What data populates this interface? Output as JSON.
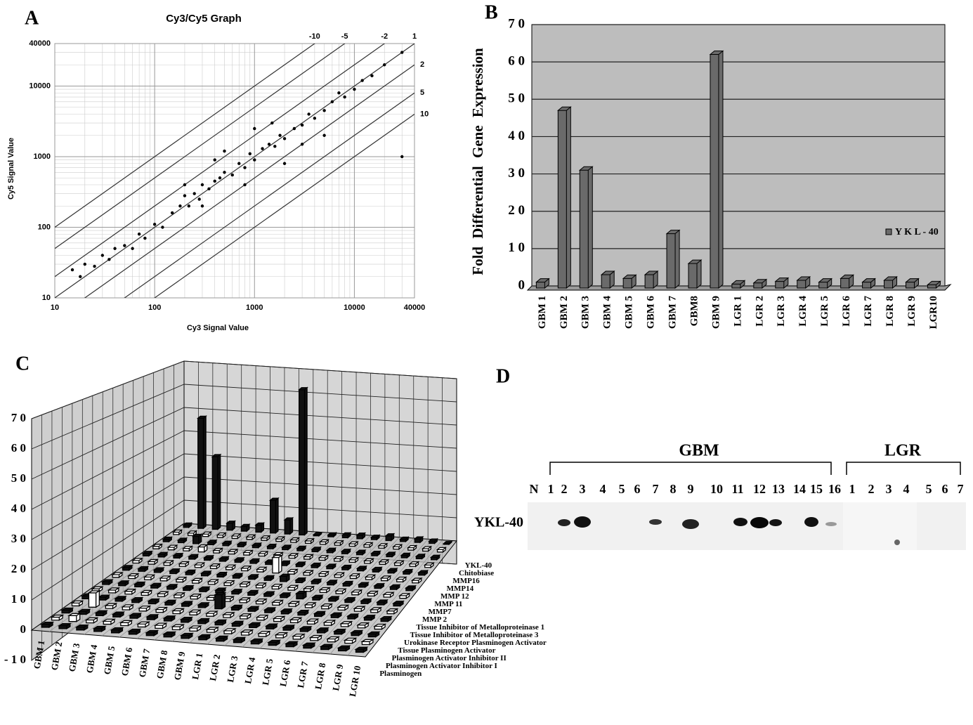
{
  "panels": {
    "a": "A",
    "b": "B",
    "c": "C",
    "d": "D"
  },
  "chart_data": [
    {
      "type": "scatter",
      "title": "Cy3/Cy5 Graph",
      "x_label": "Cy3 Signal Value",
      "y_label": "Cy5 Signal Value",
      "log_scale": true,
      "grid": true,
      "color": "#000000",
      "xlim": [
        10,
        40000
      ],
      "ylim": [
        10,
        40000
      ],
      "xticks": [
        10,
        100,
        1000,
        10000,
        40000
      ],
      "yticks": [
        10,
        100,
        1000,
        10000,
        40000
      ],
      "fold_lines": [
        {
          "value": 10,
          "label": "-10"
        },
        {
          "value": 5,
          "label": "-5"
        },
        {
          "value": 2,
          "label": "-2"
        },
        {
          "value": 1,
          "label": "1"
        },
        {
          "value": 0.5,
          "label": "2"
        },
        {
          "value": 0.2,
          "label": "5"
        },
        {
          "value": 0.1,
          "label": "10"
        }
      ],
      "x": [
        15,
        18,
        20,
        25,
        30,
        35,
        40,
        50,
        60,
        70,
        80,
        100,
        120,
        150,
        180,
        200,
        220,
        250,
        280,
        300,
        350,
        400,
        450,
        500,
        600,
        700,
        800,
        900,
        1000,
        1200,
        1400,
        1600,
        1800,
        2000,
        2500,
        3000,
        3500,
        4000,
        5000,
        6000,
        7000,
        8000,
        10000,
        12000,
        15000,
        20000,
        30000,
        200,
        300,
        500,
        1000,
        2000,
        5000,
        400,
        800,
        1500,
        3000,
        30000
      ],
      "y": [
        25,
        20,
        30,
        28,
        40,
        35,
        50,
        55,
        50,
        80,
        70,
        110,
        100,
        160,
        200,
        280,
        200,
        300,
        250,
        400,
        350,
        450,
        500,
        600,
        550,
        800,
        700,
        1100,
        900,
        1300,
        1500,
        1400,
        2000,
        1800,
        2500,
        2800,
        4000,
        3500,
        4500,
        6000,
        8000,
        7000,
        9000,
        12000,
        14000,
        20000,
        30000,
        400,
        200,
        1200,
        2500,
        800,
        2000,
        900,
        400,
        3000,
        1500,
        1000
      ]
    },
    {
      "type": "bar",
      "y_label": "Fold Differential Gene Expression",
      "legend": "right",
      "grid": true,
      "categories": [
        "GBM 1",
        "GBM 2",
        "GBM 3",
        "GBM 4",
        "GBM 5",
        "GBM 6",
        "GBM 7",
        "GBM8",
        "GBM 9",
        "LGR 1",
        "LGR 2",
        "LGR 3",
        "LGR 4",
        "LGR 5",
        "LGR 6",
        "LGR 7",
        "LGR 8",
        "LGR 9",
        "LGR10"
      ],
      "series": [
        {
          "name": "Y K L - 40",
          "color": "#6a6a6a",
          "values": [
            1,
            47,
            31,
            3,
            2,
            3,
            14,
            6,
            62,
            0.5,
            0.8,
            1.2,
            1.5,
            1,
            2,
            1,
            1.5,
            1,
            0.3
          ]
        }
      ],
      "ylim": [
        0,
        70
      ],
      "yticks": [
        0,
        {
          "value": 10,
          "label": "1 0"
        },
        {
          "value": 20,
          "label": "2 0"
        },
        {
          "value": 30,
          "label": "3 0"
        },
        {
          "value": 40,
          "label": "4 0"
        },
        {
          "value": 50,
          "label": "5 0"
        },
        {
          "value": 60,
          "label": "6 0"
        },
        {
          "value": 70,
          "label": "7 0"
        }
      ]
    },
    {
      "type": "bar3d",
      "grid": true,
      "categories": [
        "GBM 1",
        "GBM 2",
        "GBM 3",
        "GBM 4",
        "GBM 5",
        "GBM 6",
        "GBM 7",
        "GBM 8",
        "GBM 9",
        "LGR 1",
        "LGR 2",
        "LGR 3",
        "LGR 4",
        "LGR 5",
        "LGR 6",
        "LGR 7",
        "LGR 8",
        "LGR 9",
        "LGR 10"
      ],
      "series": [
        {
          "name": "Plasminogen",
          "color": "#111111",
          "values": [
            1,
            1,
            1,
            1,
            1,
            1,
            1,
            1,
            1,
            1,
            1,
            1,
            1,
            1,
            1,
            1,
            1,
            1,
            1
          ]
        },
        {
          "name": "Plasminogen Activator Inhibitor I",
          "color": "#ffffff",
          "values": [
            1,
            2,
            1,
            1,
            1,
            1,
            1,
            1,
            1,
            1,
            1,
            1,
            1,
            1,
            1,
            1,
            1,
            1,
            1
          ]
        },
        {
          "name": "Plasminogen Activator Inhibitor II",
          "color": "#111111",
          "values": [
            1,
            1,
            1,
            1,
            1,
            1,
            1,
            1,
            1,
            1,
            1,
            1,
            1,
            1,
            1,
            1,
            1,
            1,
            1
          ]
        },
        {
          "name": "Tissue Plasminogen Activator",
          "color": "#ffffff",
          "values": [
            1,
            5,
            1,
            1,
            1,
            1,
            1,
            1,
            1,
            1,
            1,
            1,
            1,
            1,
            1,
            1,
            1,
            1,
            1
          ]
        },
        {
          "name": "Urokinase Receptor Plasminogen Activator",
          "color": "#111111",
          "values": [
            1,
            1,
            1,
            1,
            1,
            1,
            1,
            1,
            5,
            1,
            1,
            1,
            1,
            1,
            1,
            1,
            1,
            1,
            1
          ]
        },
        {
          "name": "Tissue Inhibitor of Metalloproteinase 3",
          "color": "#ffffff",
          "values": [
            1,
            1,
            1,
            1,
            1,
            1,
            1,
            1,
            1,
            1,
            1,
            1,
            1,
            1,
            1,
            1,
            1,
            1,
            1
          ]
        },
        {
          "name": "Tissue Inhibitor of Metalloproteinase 1",
          "color": "#111111",
          "values": [
            1,
            1,
            1,
            1,
            1,
            1,
            1,
            1,
            1,
            1,
            1,
            1,
            2,
            1,
            1,
            1,
            1,
            1,
            1
          ]
        },
        {
          "name": "MMP 2",
          "color": "#ffffff",
          "values": [
            1,
            1,
            1,
            1,
            1,
            1,
            1,
            1,
            1,
            1,
            1,
            1,
            1,
            1,
            1,
            1,
            1,
            1,
            1
          ]
        },
        {
          "name": "MMP7",
          "color": "#111111",
          "values": [
            1,
            1,
            1,
            1,
            1,
            1,
            1,
            1,
            1,
            1,
            2,
            1,
            1,
            1,
            1,
            1,
            1,
            1,
            1
          ]
        },
        {
          "name": "MMP 11",
          "color": "#ffffff",
          "values": [
            1,
            1,
            1,
            1,
            1,
            1,
            1,
            1,
            1,
            6,
            1,
            1,
            1,
            1,
            1,
            1,
            1,
            1,
            1
          ]
        },
        {
          "name": "MMP 12",
          "color": "#111111",
          "values": [
            1,
            1,
            1,
            1,
            1,
            1,
            1,
            1,
            1,
            1,
            1,
            1,
            1,
            1,
            1,
            1,
            1,
            1,
            1
          ]
        },
        {
          "name": "MMP14",
          "color": "#ffffff",
          "values": [
            1,
            1,
            1,
            2,
            1,
            1,
            1,
            1,
            1,
            1,
            1,
            1,
            1,
            1,
            1,
            1,
            1,
            1,
            1
          ]
        },
        {
          "name": "MMP16",
          "color": "#111111",
          "values": [
            1,
            1,
            3,
            1,
            1,
            1,
            1,
            1,
            1,
            1,
            1,
            1,
            1,
            1,
            1,
            1,
            1,
            1,
            1
          ]
        },
        {
          "name": "Chitobiase",
          "color": "#ffffff",
          "values": [
            1,
            1,
            1,
            1,
            1,
            1,
            1,
            1,
            1,
            1,
            1,
            1,
            1,
            1,
            1,
            1,
            1,
            1,
            1
          ]
        },
        {
          "name": "YKL-40",
          "color": "#111111",
          "values": [
            1,
            47,
            31,
            3,
            2,
            3,
            14,
            6,
            62,
            0.5,
            0.8,
            1.2,
            1.5,
            1,
            2,
            1,
            1.5,
            1,
            0.3
          ]
        }
      ],
      "ylim": [
        -10,
        70
      ],
      "yticks": [
        {
          "value": -10,
          "label": "- 1 0"
        },
        0,
        {
          "value": 10,
          "label": "1 0"
        },
        {
          "value": 20,
          "label": "2 0"
        },
        {
          "value": 30,
          "label": "3 0"
        },
        {
          "value": 40,
          "label": "4 0"
        },
        {
          "value": 50,
          "label": "5 0"
        },
        {
          "value": 60,
          "label": "6 0"
        },
        {
          "value": 70,
          "label": "7 0"
        }
      ]
    }
  ],
  "blot": {
    "groups": [
      "GBM",
      "LGR"
    ],
    "row_label": "YKL-40",
    "lanes": [
      "N",
      "1",
      "2",
      "3",
      "4",
      "5",
      "6",
      "7",
      "8",
      "9",
      "10",
      "11",
      "12",
      "13",
      "14",
      "15",
      "16",
      "1",
      "2",
      "3",
      "4",
      "5",
      "6",
      "7"
    ]
  }
}
